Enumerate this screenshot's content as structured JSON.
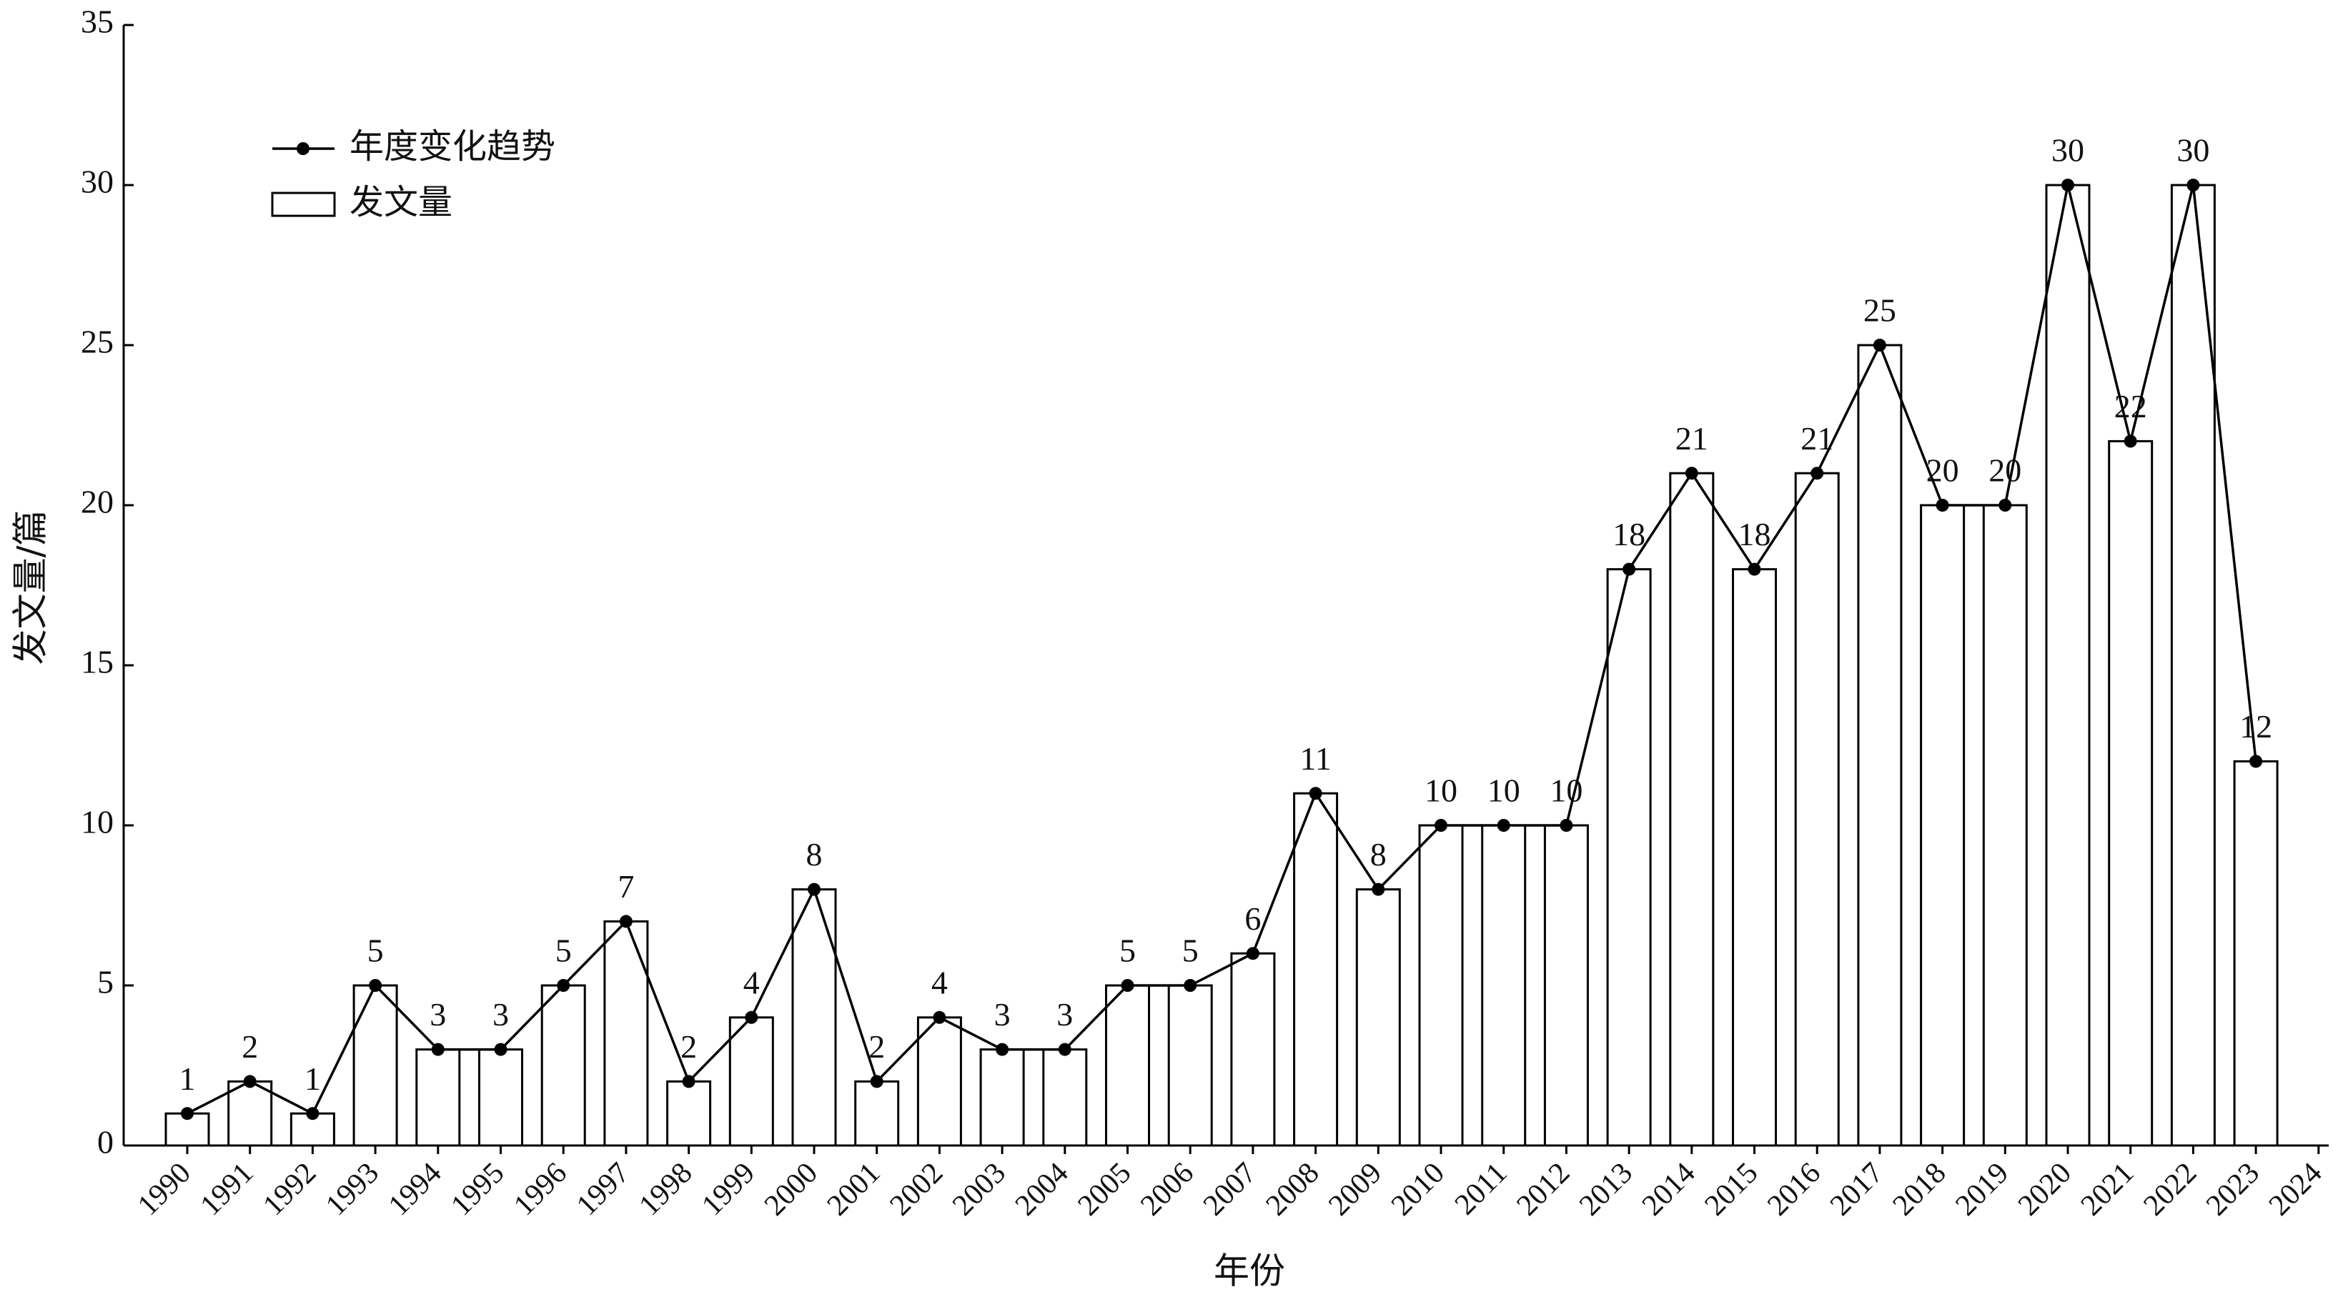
{
  "chart_data": {
    "type": "bar-line",
    "x_label": "年份",
    "y_label": "发文量/篇",
    "categories": [
      "1990",
      "1991",
      "1992",
      "1993",
      "1994",
      "1995",
      "1996",
      "1997",
      "1998",
      "1999",
      "2000",
      "2001",
      "2002",
      "2003",
      "2004",
      "2005",
      "2006",
      "2007",
      "2008",
      "2009",
      "2010",
      "2011",
      "2012",
      "2013",
      "2014",
      "2015",
      "2016",
      "2017",
      "2018",
      "2019",
      "2020",
      "2021",
      "2022",
      "2023",
      "2024"
    ],
    "series": [
      {
        "name": "年度变化趋势",
        "type": "line",
        "color": "#000000",
        "values": [
          1,
          2,
          1,
          5,
          3,
          3,
          5,
          7,
          2,
          4,
          8,
          2,
          4,
          3,
          3,
          5,
          5,
          6,
          11,
          8,
          10,
          10,
          10,
          18,
          21,
          18,
          21,
          25,
          20,
          20,
          30,
          22,
          30,
          12,
          null
        ]
      },
      {
        "name": "发文量",
        "type": "bar",
        "color": "#ffffff",
        "values": [
          1,
          2,
          1,
          5,
          3,
          3,
          5,
          7,
          2,
          4,
          8,
          2,
          4,
          3,
          3,
          5,
          5,
          6,
          11,
          8,
          10,
          10,
          10,
          18,
          21,
          18,
          21,
          25,
          20,
          20,
          30,
          22,
          30,
          12,
          null
        ]
      }
    ],
    "ylim": [
      0,
      35
    ],
    "yticks": [
      0,
      5,
      10,
      15,
      20,
      25,
      30,
      35
    ],
    "legend": "upper left"
  }
}
